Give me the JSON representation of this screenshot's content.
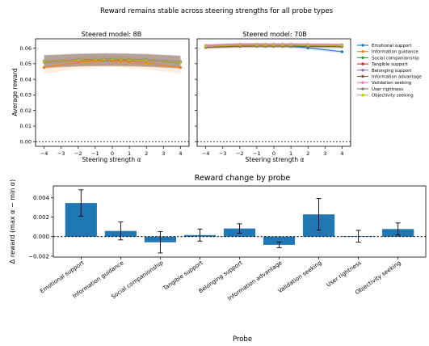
{
  "figure": {
    "suptitle": "Reward remains stable across steering strengths for all probe types"
  },
  "colors": {
    "Emotional support": "#1f77b4",
    "Information guidance": "#ff7f0e",
    "Social companionship": "#2ca02c",
    "Tangible support": "#d62728",
    "Belonging support": "#9467bd",
    "Information advantage": "#8c564b",
    "Validation seeking": "#e377c2",
    "User rightness": "#7f7f7f",
    "Objectivity seeking": "#bcbd22",
    "bar": "#1f77b4"
  },
  "chart_data": [
    {
      "type": "line",
      "title": "Steered model: 8B",
      "xlabel": "Steering strength α",
      "ylabel": "Average reward",
      "x": [
        -4,
        -2,
        -1,
        -0.5,
        0,
        0.5,
        1,
        2,
        4
      ],
      "xticks": [
        -4,
        -3,
        -2,
        -1,
        0,
        1,
        2,
        3,
        4
      ],
      "xlim": [
        -4.5,
        4.5
      ],
      "ylim": [
        -0.003,
        0.066
      ],
      "yticks": [
        0.0,
        0.01,
        0.02,
        0.03,
        0.04,
        0.05,
        0.06
      ],
      "ytick_labels": [
        "0.00",
        "0.01",
        "0.02",
        "0.03",
        "0.04",
        "0.05",
        "0.06"
      ],
      "reference_line": 0,
      "legend": "outside-right",
      "series": [
        {
          "name": "Emotional support",
          "values": [
            0.0515,
            0.0525,
            0.0527,
            0.0528,
            0.0528,
            0.0527,
            0.0526,
            0.0524,
            0.0512
          ],
          "band": 0.004
        },
        {
          "name": "Information guidance",
          "values": [
            0.0476,
            0.0509,
            0.0516,
            0.0518,
            0.0518,
            0.0516,
            0.0512,
            0.0505,
            0.0476
          ],
          "band": 0.004
        },
        {
          "name": "Social companionship",
          "values": [
            0.051,
            0.0522,
            0.0524,
            0.0524,
            0.0524,
            0.0523,
            0.0522,
            0.0519,
            0.0508
          ],
          "band": 0.004
        },
        {
          "name": "Tangible support",
          "values": [
            0.0512,
            0.0521,
            0.0523,
            0.0524,
            0.0524,
            0.0523,
            0.0522,
            0.052,
            0.051
          ],
          "band": 0.004
        },
        {
          "name": "Belonging support",
          "values": [
            0.0515,
            0.0524,
            0.0526,
            0.0527,
            0.0527,
            0.0526,
            0.0525,
            0.0522,
            0.0511
          ],
          "band": 0.004
        },
        {
          "name": "Information advantage",
          "values": [
            0.0516,
            0.0525,
            0.0527,
            0.0528,
            0.0528,
            0.0527,
            0.0526,
            0.0523,
            0.0512
          ],
          "band": 0.004
        },
        {
          "name": "Validation seeking",
          "values": [
            0.0513,
            0.0523,
            0.0525,
            0.0526,
            0.0526,
            0.0525,
            0.0524,
            0.0521,
            0.0509
          ],
          "band": 0.004
        },
        {
          "name": "User rightness",
          "values": [
            0.0517,
            0.0524,
            0.0526,
            0.0527,
            0.0527,
            0.0526,
            0.0525,
            0.0523,
            0.0513
          ],
          "band": 0.004
        },
        {
          "name": "Objectivity seeking",
          "values": [
            0.0514,
            0.0523,
            0.0525,
            0.0526,
            0.0526,
            0.0525,
            0.0524,
            0.0521,
            0.051
          ],
          "band": 0.004
        }
      ]
    },
    {
      "type": "line",
      "title": "Steered model: 70B",
      "xlabel": "Steering strength α",
      "x": [
        -4,
        -2,
        -1,
        -0.5,
        0,
        0.5,
        1,
        2,
        4
      ],
      "xticks": [
        -4,
        -3,
        -2,
        -1,
        0,
        1,
        2,
        3,
        4
      ],
      "xlim": [
        -4.5,
        4.5
      ],
      "ylim": [
        -0.003,
        0.066
      ],
      "reference_line": 0,
      "series": [
        {
          "name": "Emotional support",
          "values": [
            0.0612,
            0.0621,
            0.062,
            0.0619,
            0.0618,
            0.0616,
            0.0612,
            0.0602,
            0.0577
          ],
          "band": 0.0012
        },
        {
          "name": "Information guidance",
          "values": [
            0.0612,
            0.062,
            0.0621,
            0.0621,
            0.0621,
            0.0621,
            0.062,
            0.0619,
            0.0616
          ],
          "band": 0.0012
        },
        {
          "name": "Social companionship",
          "values": [
            0.0607,
            0.0614,
            0.0614,
            0.0614,
            0.0614,
            0.0614,
            0.0614,
            0.0613,
            0.0611
          ],
          "band": 0.0012
        },
        {
          "name": "Tangible support",
          "values": [
            0.0609,
            0.0616,
            0.0616,
            0.0616,
            0.0616,
            0.0616,
            0.0616,
            0.0615,
            0.0613
          ],
          "band": 0.0012
        },
        {
          "name": "Belonging support",
          "values": [
            0.0613,
            0.062,
            0.0621,
            0.0621,
            0.0621,
            0.0621,
            0.0621,
            0.062,
            0.0618
          ],
          "band": 0.0012
        },
        {
          "name": "Information advantage",
          "values": [
            0.0605,
            0.0612,
            0.0613,
            0.0613,
            0.0613,
            0.0613,
            0.0613,
            0.0612,
            0.061
          ],
          "band": 0.0012
        },
        {
          "name": "Validation seeking",
          "values": [
            0.0617,
            0.0625,
            0.0625,
            0.0625,
            0.0625,
            0.0625,
            0.0625,
            0.0624,
            0.0622
          ],
          "band": 0.0012
        },
        {
          "name": "User rightness",
          "values": [
            0.0611,
            0.0618,
            0.0618,
            0.0618,
            0.0618,
            0.0618,
            0.0618,
            0.0617,
            0.0615
          ],
          "band": 0.0012
        },
        {
          "name": "Objectivity seeking",
          "values": [
            0.0611,
            0.0619,
            0.0619,
            0.0619,
            0.0619,
            0.0619,
            0.0619,
            0.0618,
            0.0616
          ],
          "band": 0.0012
        }
      ]
    },
    {
      "type": "bar",
      "title": "Reward change by probe",
      "xlabel": "Probe",
      "ylabel": "Δ reward (max α − min α)",
      "categories": [
        "Emotional support",
        "Information guidance",
        "Social companionship",
        "Tangible support",
        "Belonging support",
        "Information advantage",
        "Validation seeking",
        "User rightness",
        "Objectivity seeking"
      ],
      "values": [
        0.00345,
        0.00058,
        -0.00058,
        0.00016,
        0.00083,
        -0.00085,
        0.00228,
        4e-05,
        0.00078
      ],
      "error": [
        0.00135,
        0.00092,
        0.0011,
        0.00062,
        0.00048,
        0.0003,
        0.00162,
        0.0006,
        0.00062
      ],
      "ylim": [
        -0.0021,
        0.0052
      ],
      "yticks": [
        -0.002,
        0.0,
        0.002,
        0.004
      ],
      "ytick_labels": [
        "−0.002",
        "0.000",
        "0.002",
        "0.004"
      ],
      "reference_line": 0
    }
  ]
}
